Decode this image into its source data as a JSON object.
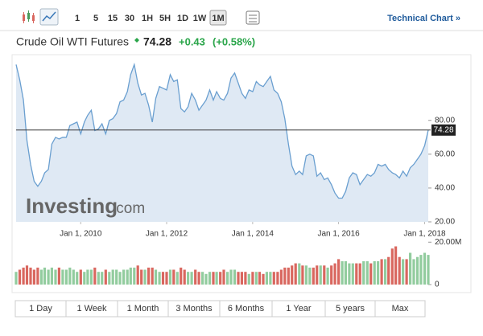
{
  "chart_data": {
    "type": "area",
    "intervals": [
      "1",
      "5",
      "15",
      "30",
      "1H",
      "5H",
      "1D",
      "1W",
      "1M"
    ],
    "active_interval": 8,
    "technical_chart": "Technical Chart »",
    "title": "Crude Oil WTI Futures",
    "last_price": 74.28,
    "change": "+0.43",
    "change_pct": "(+0.58%)",
    "watermark": "Investing",
    "watermark_suffix": ".com",
    "color": "#6a9fd0",
    "fill": "#dfe9f4",
    "up_color": "#92cc9e",
    "down_color": "#d9675f",
    "x": [
      "2008-07-01",
      "2008-08-01",
      "2008-09-01",
      "2008-10-01",
      "2008-11-01",
      "2008-12-01",
      "2009-01-01",
      "2009-02-01",
      "2009-03-01",
      "2009-04-01",
      "2009-05-01",
      "2009-06-01",
      "2009-07-01",
      "2009-08-01",
      "2009-09-01",
      "2009-10-01",
      "2009-11-01",
      "2009-12-01",
      "2010-01-01",
      "2010-02-01",
      "2010-03-01",
      "2010-04-01",
      "2010-05-01",
      "2010-06-01",
      "2010-07-01",
      "2010-08-01",
      "2010-09-01",
      "2010-10-01",
      "2010-11-01",
      "2010-12-01",
      "2011-01-01",
      "2011-02-01",
      "2011-03-01",
      "2011-04-01",
      "2011-05-01",
      "2011-06-01",
      "2011-07-01",
      "2011-08-01",
      "2011-09-01",
      "2011-10-01",
      "2011-11-01",
      "2011-12-01",
      "2012-01-01",
      "2012-02-01",
      "2012-03-01",
      "2012-04-01",
      "2012-05-01",
      "2012-06-01",
      "2012-07-01",
      "2012-08-01",
      "2012-09-01",
      "2012-10-01",
      "2012-11-01",
      "2012-12-01",
      "2013-01-01",
      "2013-02-01",
      "2013-03-01",
      "2013-04-01",
      "2013-05-01",
      "2013-06-01",
      "2013-07-01",
      "2013-08-01",
      "2013-09-01",
      "2013-10-01",
      "2013-11-01",
      "2013-12-01",
      "2014-01-01",
      "2014-02-01",
      "2014-03-01",
      "2014-04-01",
      "2014-05-01",
      "2014-06-01",
      "2014-07-01",
      "2014-08-01",
      "2014-09-01",
      "2014-10-01",
      "2014-11-01",
      "2014-12-01",
      "2015-01-01",
      "2015-02-01",
      "2015-03-01",
      "2015-04-01",
      "2015-05-01",
      "2015-06-01",
      "2015-07-01",
      "2015-08-01",
      "2015-09-01",
      "2015-10-01",
      "2015-11-01",
      "2015-12-01",
      "2016-01-01",
      "2016-02-01",
      "2016-03-01",
      "2016-04-01",
      "2016-05-01",
      "2016-06-01",
      "2016-07-01",
      "2016-08-01",
      "2016-09-01",
      "2016-10-01",
      "2016-11-01",
      "2016-12-01",
      "2017-01-01",
      "2017-02-01",
      "2017-03-01",
      "2017-04-01",
      "2017-05-01",
      "2017-06-01",
      "2017-07-01",
      "2017-08-01",
      "2017-09-01",
      "2017-10-01",
      "2017-11-01",
      "2017-12-01",
      "2018-01-01",
      "2018-02-01"
    ],
    "values": [
      113,
      104,
      92,
      68,
      54,
      44,
      41,
      44,
      49,
      51,
      66,
      70,
      69,
      70,
      70,
      77,
      78,
      79,
      72,
      79,
      83,
      86,
      74,
      75,
      78,
      72,
      80,
      81,
      84,
      91,
      92,
      97,
      107,
      113,
      102,
      95,
      96,
      89,
      79,
      93,
      100,
      99,
      98,
      107,
      103,
      104,
      87,
      85,
      88,
      96,
      92,
      86,
      89,
      92,
      98,
      92,
      97,
      93,
      92,
      96,
      105,
      108,
      102,
      96,
      93,
      98,
      97,
      103,
      101,
      100,
      103,
      106,
      98,
      96,
      91,
      81,
      66,
      53,
      48,
      50,
      48,
      59,
      60,
      59,
      47,
      49,
      45,
      46,
      42,
      37,
      34,
      34,
      38,
      46,
      49,
      48,
      42,
      45,
      48,
      47,
      49,
      54,
      53,
      54,
      51,
      49,
      48,
      46,
      50,
      47,
      52,
      54,
      57,
      60,
      65,
      74.28
    ],
    "volume": [
      6,
      7,
      8,
      9,
      8,
      7,
      8,
      7,
      8,
      7,
      8,
      7,
      8,
      7,
      7,
      8,
      7,
      6,
      7,
      6,
      7,
      7,
      8,
      6,
      6,
      7,
      6,
      7,
      7,
      6,
      7,
      7,
      8,
      8,
      9,
      7,
      7,
      8,
      8,
      7,
      6,
      6,
      6,
      7,
      7,
      6,
      8,
      7,
      6,
      6,
      7,
      6,
      6,
      5,
      6,
      6,
      6,
      6,
      7,
      6,
      7,
      7,
      6,
      6,
      6,
      5,
      6,
      6,
      6,
      5,
      6,
      6,
      6,
      6,
      7,
      8,
      8,
      9,
      10,
      10,
      9,
      9,
      8,
      8,
      9,
      9,
      9,
      8,
      9,
      10,
      12,
      11,
      11,
      10,
      10,
      10,
      10,
      11,
      11,
      10,
      11,
      11,
      12,
      12,
      13,
      17,
      18,
      13,
      12,
      12,
      15,
      12,
      13,
      14,
      15,
      14
    ],
    "xlim": [
      "2008-07-01",
      "2018-02-01"
    ],
    "xticks": [
      {
        "value": "2010-01-01",
        "label": "Jan 1, 2010"
      },
      {
        "value": "2012-01-01",
        "label": "Jan 1, 2012"
      },
      {
        "value": "2014-01-01",
        "label": "Jan 1, 2014"
      },
      {
        "value": "2016-01-01",
        "label": "Jan 1, 2016"
      },
      {
        "value": "2018-01-01",
        "label": "Jan 1, 2018"
      }
    ],
    "ylim": [
      20,
      116
    ],
    "yticks": [
      {
        "value": 20,
        "label": "20.00"
      },
      {
        "value": 40,
        "label": "40.00"
      },
      {
        "value": 60,
        "label": "60.00"
      },
      {
        "value": 80,
        "label": "80.00"
      }
    ],
    "vlim": [
      0,
      22
    ],
    "vticks": [
      0,
      {
        "value": 20,
        "label": "20.00M"
      }
    ],
    "grid": false,
    "periods": [
      "1 Day",
      "1 Week",
      "1 Month",
      "3 Months",
      "6 Months",
      "1 Year",
      "5 years",
      "Max"
    ]
  }
}
